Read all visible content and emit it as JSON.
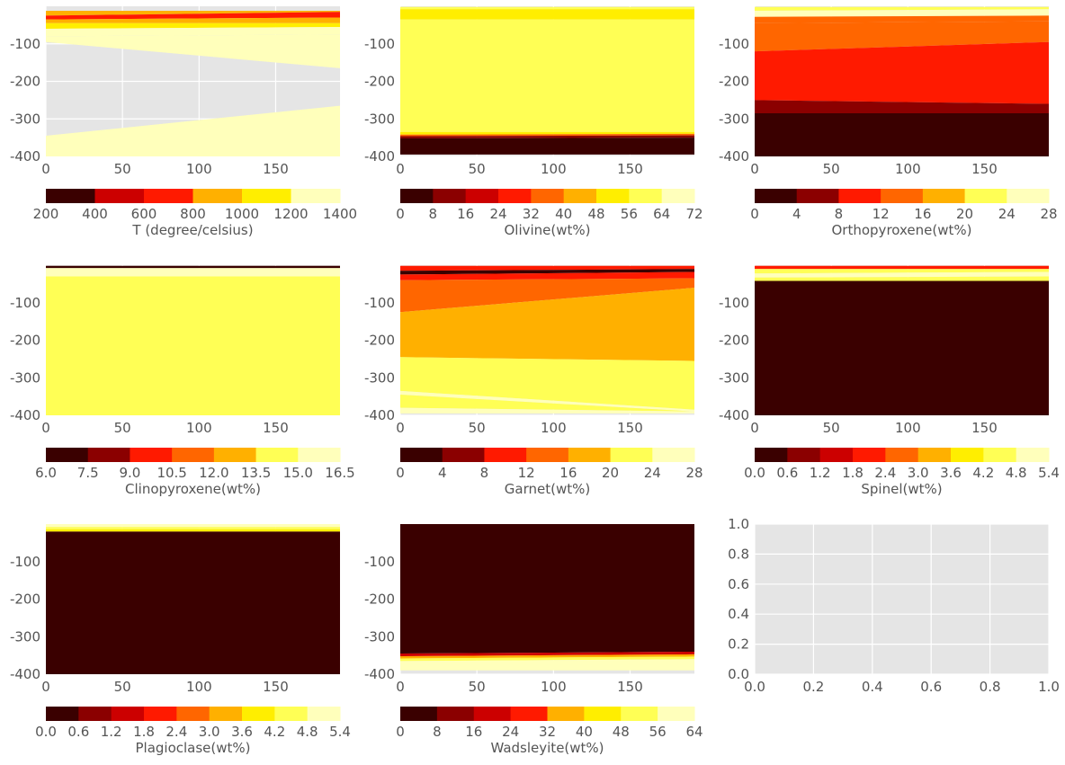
{
  "chart_data": [
    {
      "type": "heatmap",
      "colorbar_label": "T (degree/celsius)",
      "colorbar_ticks": [
        "200",
        "400",
        "600",
        "800",
        "1000",
        "1200",
        "1400"
      ],
      "x_ticks": [
        "0",
        "50",
        "100",
        "150"
      ],
      "y_ticks": [
        "-100",
        "-200",
        "-300",
        "-400"
      ],
      "xlim": [
        0,
        192
      ],
      "ylim": [
        -400,
        0
      ],
      "filled_depth": [
        -400,
        -12
      ],
      "layers_top_down": [
        {
          "level": 3,
          "left_bottom": -25,
          "right_bottom": -15
        },
        {
          "level": 2,
          "left_bottom": -35,
          "right_bottom": -30
        },
        {
          "level": 3,
          "left_bottom": -45,
          "right_bottom": -45
        },
        {
          "level": 4,
          "left_bottom": -60,
          "right_bottom": -55
        },
        {
          "level": 5,
          "left_bottom": -80,
          "right_bottom": -75
        },
        {
          "level": 6,
          "left_bottom": -95,
          "right_bottom": -165
        },
        {
          "level": -1,
          "left_bottom": -345,
          "right_bottom": -265
        },
        {
          "level": 6,
          "left_bottom": -400,
          "right_bottom": -400
        }
      ]
    },
    {
      "type": "heatmap",
      "colorbar_label": "Olivine(wt%)",
      "colorbar_ticks": [
        "0",
        "8",
        "16",
        "24",
        "32",
        "40",
        "48",
        "56",
        "64",
        "72"
      ],
      "x_ticks": [
        "0",
        "50",
        "100",
        "150"
      ],
      "y_ticks": [
        "-100",
        "-200",
        "-300",
        "-400"
      ],
      "xlim": [
        0,
        192
      ],
      "ylim": [
        -400,
        0
      ],
      "filled_depth": [
        -395,
        -2
      ],
      "layers_top_down": [
        {
          "level": 7,
          "left_bottom": -8,
          "right_bottom": -8
        },
        {
          "level": 6,
          "left_bottom": -35,
          "right_bottom": -35
        },
        {
          "level": 7,
          "left_bottom": -335,
          "right_bottom": -335
        },
        {
          "level": 6,
          "left_bottom": -342,
          "right_bottom": -340
        },
        {
          "level": 4,
          "left_bottom": -346,
          "right_bottom": -344
        },
        {
          "level": 1,
          "left_bottom": -352,
          "right_bottom": -350
        },
        {
          "level": 0,
          "left_bottom": -395,
          "right_bottom": -395
        }
      ]
    },
    {
      "type": "heatmap",
      "colorbar_label": "Orthopyroxene(wt%)",
      "colorbar_ticks": [
        "0",
        "4",
        "8",
        "12",
        "16",
        "20",
        "24",
        "28"
      ],
      "x_ticks": [
        "0",
        "50",
        "100",
        "150"
      ],
      "y_ticks": [
        "-100",
        "-200",
        "-300",
        "-400"
      ],
      "xlim": [
        0,
        192
      ],
      "ylim": [
        -400,
        0
      ],
      "filled_depth": [
        -400,
        -2
      ],
      "layers_top_down": [
        {
          "level": 5,
          "left_bottom": -12,
          "right_bottom": -8
        },
        {
          "level": 6,
          "left_bottom": -28,
          "right_bottom": -25
        },
        {
          "level": 3,
          "left_bottom": -45,
          "right_bottom": -40
        },
        {
          "level": 3,
          "left_bottom": -120,
          "right_bottom": -95
        },
        {
          "level": 2,
          "left_bottom": -250,
          "right_bottom": -260
        },
        {
          "level": 1,
          "left_bottom": -285,
          "right_bottom": -285
        },
        {
          "level": 0,
          "left_bottom": -400,
          "right_bottom": -400
        }
      ]
    },
    {
      "type": "heatmap",
      "colorbar_label": "Clinopyroxene(wt%)",
      "colorbar_ticks": [
        "6.0",
        "7.5",
        "9.0",
        "10.5",
        "12.0",
        "13.5",
        "15.0",
        "16.5"
      ],
      "x_ticks": [
        "0",
        "50",
        "100",
        "150"
      ],
      "y_ticks": [
        "-100",
        "-200",
        "-300",
        "-400"
      ],
      "xlim": [
        0,
        192
      ],
      "ylim": [
        -400,
        0
      ],
      "filled_depth": [
        -400,
        -2
      ],
      "layers_top_down": [
        {
          "level": 0,
          "left_bottom": -8,
          "right_bottom": -8
        },
        {
          "level": 6,
          "left_bottom": -30,
          "right_bottom": -30
        },
        {
          "level": 5,
          "left_bottom": -400,
          "right_bottom": -400
        }
      ]
    },
    {
      "type": "heatmap",
      "colorbar_label": "Garnet(wt%)",
      "colorbar_ticks": [
        "0",
        "4",
        "8",
        "12",
        "16",
        "20",
        "24",
        "28"
      ],
      "x_ticks": [
        "0",
        "50",
        "100",
        "150"
      ],
      "y_ticks": [
        "-100",
        "-200",
        "-300",
        "-400"
      ],
      "xlim": [
        0,
        192
      ],
      "ylim": [
        -400,
        0
      ],
      "filled_depth": [
        -395,
        -2
      ],
      "layers_top_down": [
        {
          "level": 2,
          "left_bottom": -15,
          "right_bottom": -10
        },
        {
          "level": 0,
          "left_bottom": -25,
          "right_bottom": -18
        },
        {
          "level": 2,
          "left_bottom": -40,
          "right_bottom": -35
        },
        {
          "level": 3,
          "left_bottom": -125,
          "right_bottom": -60
        },
        {
          "level": 4,
          "left_bottom": -245,
          "right_bottom": -255
        },
        {
          "level": 5,
          "left_bottom": -335,
          "right_bottom": -385
        },
        {
          "level": 6,
          "left_bottom": -345,
          "right_bottom": -390
        },
        {
          "level": 5,
          "left_bottom": -380,
          "right_bottom": -390
        },
        {
          "level": 6,
          "left_bottom": -395,
          "right_bottom": -395
        }
      ]
    },
    {
      "type": "heatmap",
      "colorbar_label": "Spinel(wt%)",
      "colorbar_ticks": [
        "0.0",
        "0.6",
        "1.2",
        "1.8",
        "2.4",
        "3.0",
        "3.6",
        "4.2",
        "4.8",
        "5.4"
      ],
      "x_ticks": [
        "0",
        "50",
        "100",
        "150"
      ],
      "y_ticks": [
        "-100",
        "-200",
        "-300",
        "-400"
      ],
      "xlim": [
        0,
        192
      ],
      "ylim": [
        -400,
        0
      ],
      "filled_depth": [
        -400,
        -2
      ],
      "layers_top_down": [
        {
          "level": 3,
          "left_bottom": -10,
          "right_bottom": -10
        },
        {
          "level": 7,
          "left_bottom": -22,
          "right_bottom": -18
        },
        {
          "level": 8,
          "left_bottom": -33,
          "right_bottom": -30
        },
        {
          "level": 7,
          "left_bottom": -42,
          "right_bottom": -42
        },
        {
          "level": 0,
          "left_bottom": -400,
          "right_bottom": -400
        }
      ]
    },
    {
      "type": "heatmap",
      "colorbar_label": "Plagioclase(wt%)",
      "colorbar_ticks": [
        "0.0",
        "0.6",
        "1.2",
        "1.8",
        "2.4",
        "3.0",
        "3.6",
        "4.2",
        "4.8",
        "5.4"
      ],
      "x_ticks": [
        "0",
        "50",
        "100",
        "150"
      ],
      "y_ticks": [
        "-100",
        "-200",
        "-300",
        "-400"
      ],
      "xlim": [
        0,
        192
      ],
      "ylim": [
        -400,
        0
      ],
      "filled_depth": [
        -400,
        0
      ],
      "layers_top_down": [
        {
          "level": 8,
          "left_bottom": -8,
          "right_bottom": -8
        },
        {
          "level": 7,
          "left_bottom": -14,
          "right_bottom": -14
        },
        {
          "level": 6,
          "left_bottom": -20,
          "right_bottom": -20
        },
        {
          "level": 0,
          "left_bottom": -400,
          "right_bottom": -400
        }
      ]
    },
    {
      "type": "heatmap",
      "colorbar_label": "Wadsleyite(wt%)",
      "colorbar_ticks": [
        "0",
        "8",
        "16",
        "24",
        "32",
        "40",
        "48",
        "56",
        "64"
      ],
      "x_ticks": [
        "0",
        "50",
        "100",
        "150"
      ],
      "y_ticks": [
        "-100",
        "-200",
        "-300",
        "-400"
      ],
      "xlim": [
        0,
        192
      ],
      "ylim": [
        -400,
        0
      ],
      "filled_depth": [
        -390,
        0
      ],
      "layers_top_down": [
        {
          "level": 0,
          "left_bottom": -345,
          "right_bottom": -340
        },
        {
          "level": 2,
          "left_bottom": -352,
          "right_bottom": -347
        },
        {
          "level": 4,
          "left_bottom": -358,
          "right_bottom": -353
        },
        {
          "level": 6,
          "left_bottom": -365,
          "right_bottom": -360
        },
        {
          "level": 7,
          "left_bottom": -390,
          "right_bottom": -390
        }
      ]
    },
    {
      "type": "empty",
      "x_ticks": [
        "0.0",
        "0.2",
        "0.4",
        "0.6",
        "0.8",
        "1.0"
      ],
      "y_ticks": [
        "0.0",
        "0.2",
        "0.4",
        "0.6",
        "0.8",
        "1.0"
      ],
      "xlim": [
        0,
        1
      ],
      "ylim": [
        0,
        1
      ]
    }
  ],
  "colormap": [
    "#3a0000",
    "#8b0000",
    "#cc0000",
    "#ff1a00",
    "#ff6600",
    "#ffb000",
    "#ffee00",
    "#ffff55",
    "#ffffbb"
  ],
  "style": {
    "axes_bg": "#e5e5e5",
    "grid": "#ffffff",
    "text": "#555555"
  }
}
